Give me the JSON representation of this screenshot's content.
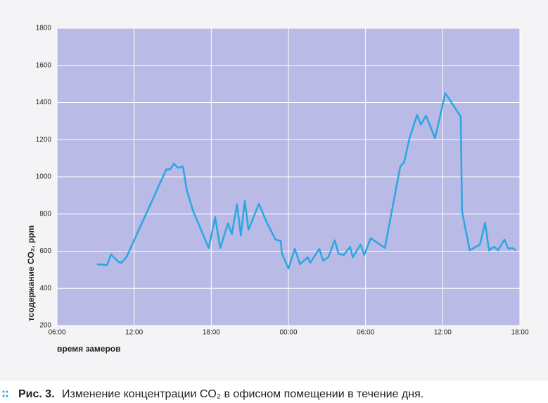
{
  "chart_data": {
    "type": "line",
    "y_label": "тсодержание CO₂, ppm",
    "x_label": "время замеров",
    "caption_prefix": "Рис. 3.",
    "caption": "Изменение концентрации CO₂ в офисном помещении в течение дня.",
    "xlim": [
      6,
      42
    ],
    "xticks": [
      {
        "value": 6,
        "label": "06:00"
      },
      {
        "value": 12,
        "label": "12:00"
      },
      {
        "value": 18,
        "label": "18:00"
      },
      {
        "value": 24,
        "label": "00:00"
      },
      {
        "value": 30,
        "label": "06:00"
      },
      {
        "value": 36,
        "label": "12:00"
      },
      {
        "value": 42,
        "label": "18:00"
      }
    ],
    "ylim": [
      200,
      1800
    ],
    "yticks": [
      200,
      400,
      600,
      800,
      1000,
      1200,
      1400,
      1600,
      1800
    ],
    "grid": true,
    "color": "#2aa7e1",
    "x": [
      9.1,
      9.9,
      10.2,
      10.8,
      11.0,
      11.4,
      14.5,
      14.8,
      15.1,
      15.4,
      15.8,
      16.1,
      16.6,
      17.8,
      18.3,
      18.7,
      19.3,
      19.6,
      20.0,
      20.3,
      20.6,
      20.9,
      21.7,
      22.3,
      23.0,
      23.4,
      23.5,
      24.0,
      24.5,
      24.9,
      25.5,
      25.7,
      26.4,
      26.7,
      27.1,
      27.6,
      27.9,
      28.3,
      28.8,
      29.0,
      29.6,
      29.9,
      30.4,
      31.5,
      32.7,
      33.0,
      33.4,
      34.0,
      34.3,
      34.7,
      35.4,
      36.2,
      37.4,
      37.5,
      38.1,
      38.9,
      39.3,
      39.6,
      40.0,
      40.3,
      40.8,
      41.1,
      41.4,
      41.7
    ],
    "values": [
      530,
      525,
      583,
      541,
      537,
      567,
      1040,
      1040,
      1071,
      1049,
      1055,
      927,
      814,
      617,
      783,
      617,
      750,
      692,
      852,
      685,
      870,
      715,
      855,
      757,
      662,
      655,
      586,
      507,
      613,
      530,
      567,
      537,
      613,
      549,
      567,
      658,
      586,
      579,
      624,
      567,
      636,
      579,
      670,
      617,
      1056,
      1079,
      1204,
      1333,
      1280,
      1330,
      1208,
      1450,
      1325,
      814,
      605,
      636,
      753,
      605,
      624,
      605,
      662,
      613,
      617,
      605
    ]
  }
}
